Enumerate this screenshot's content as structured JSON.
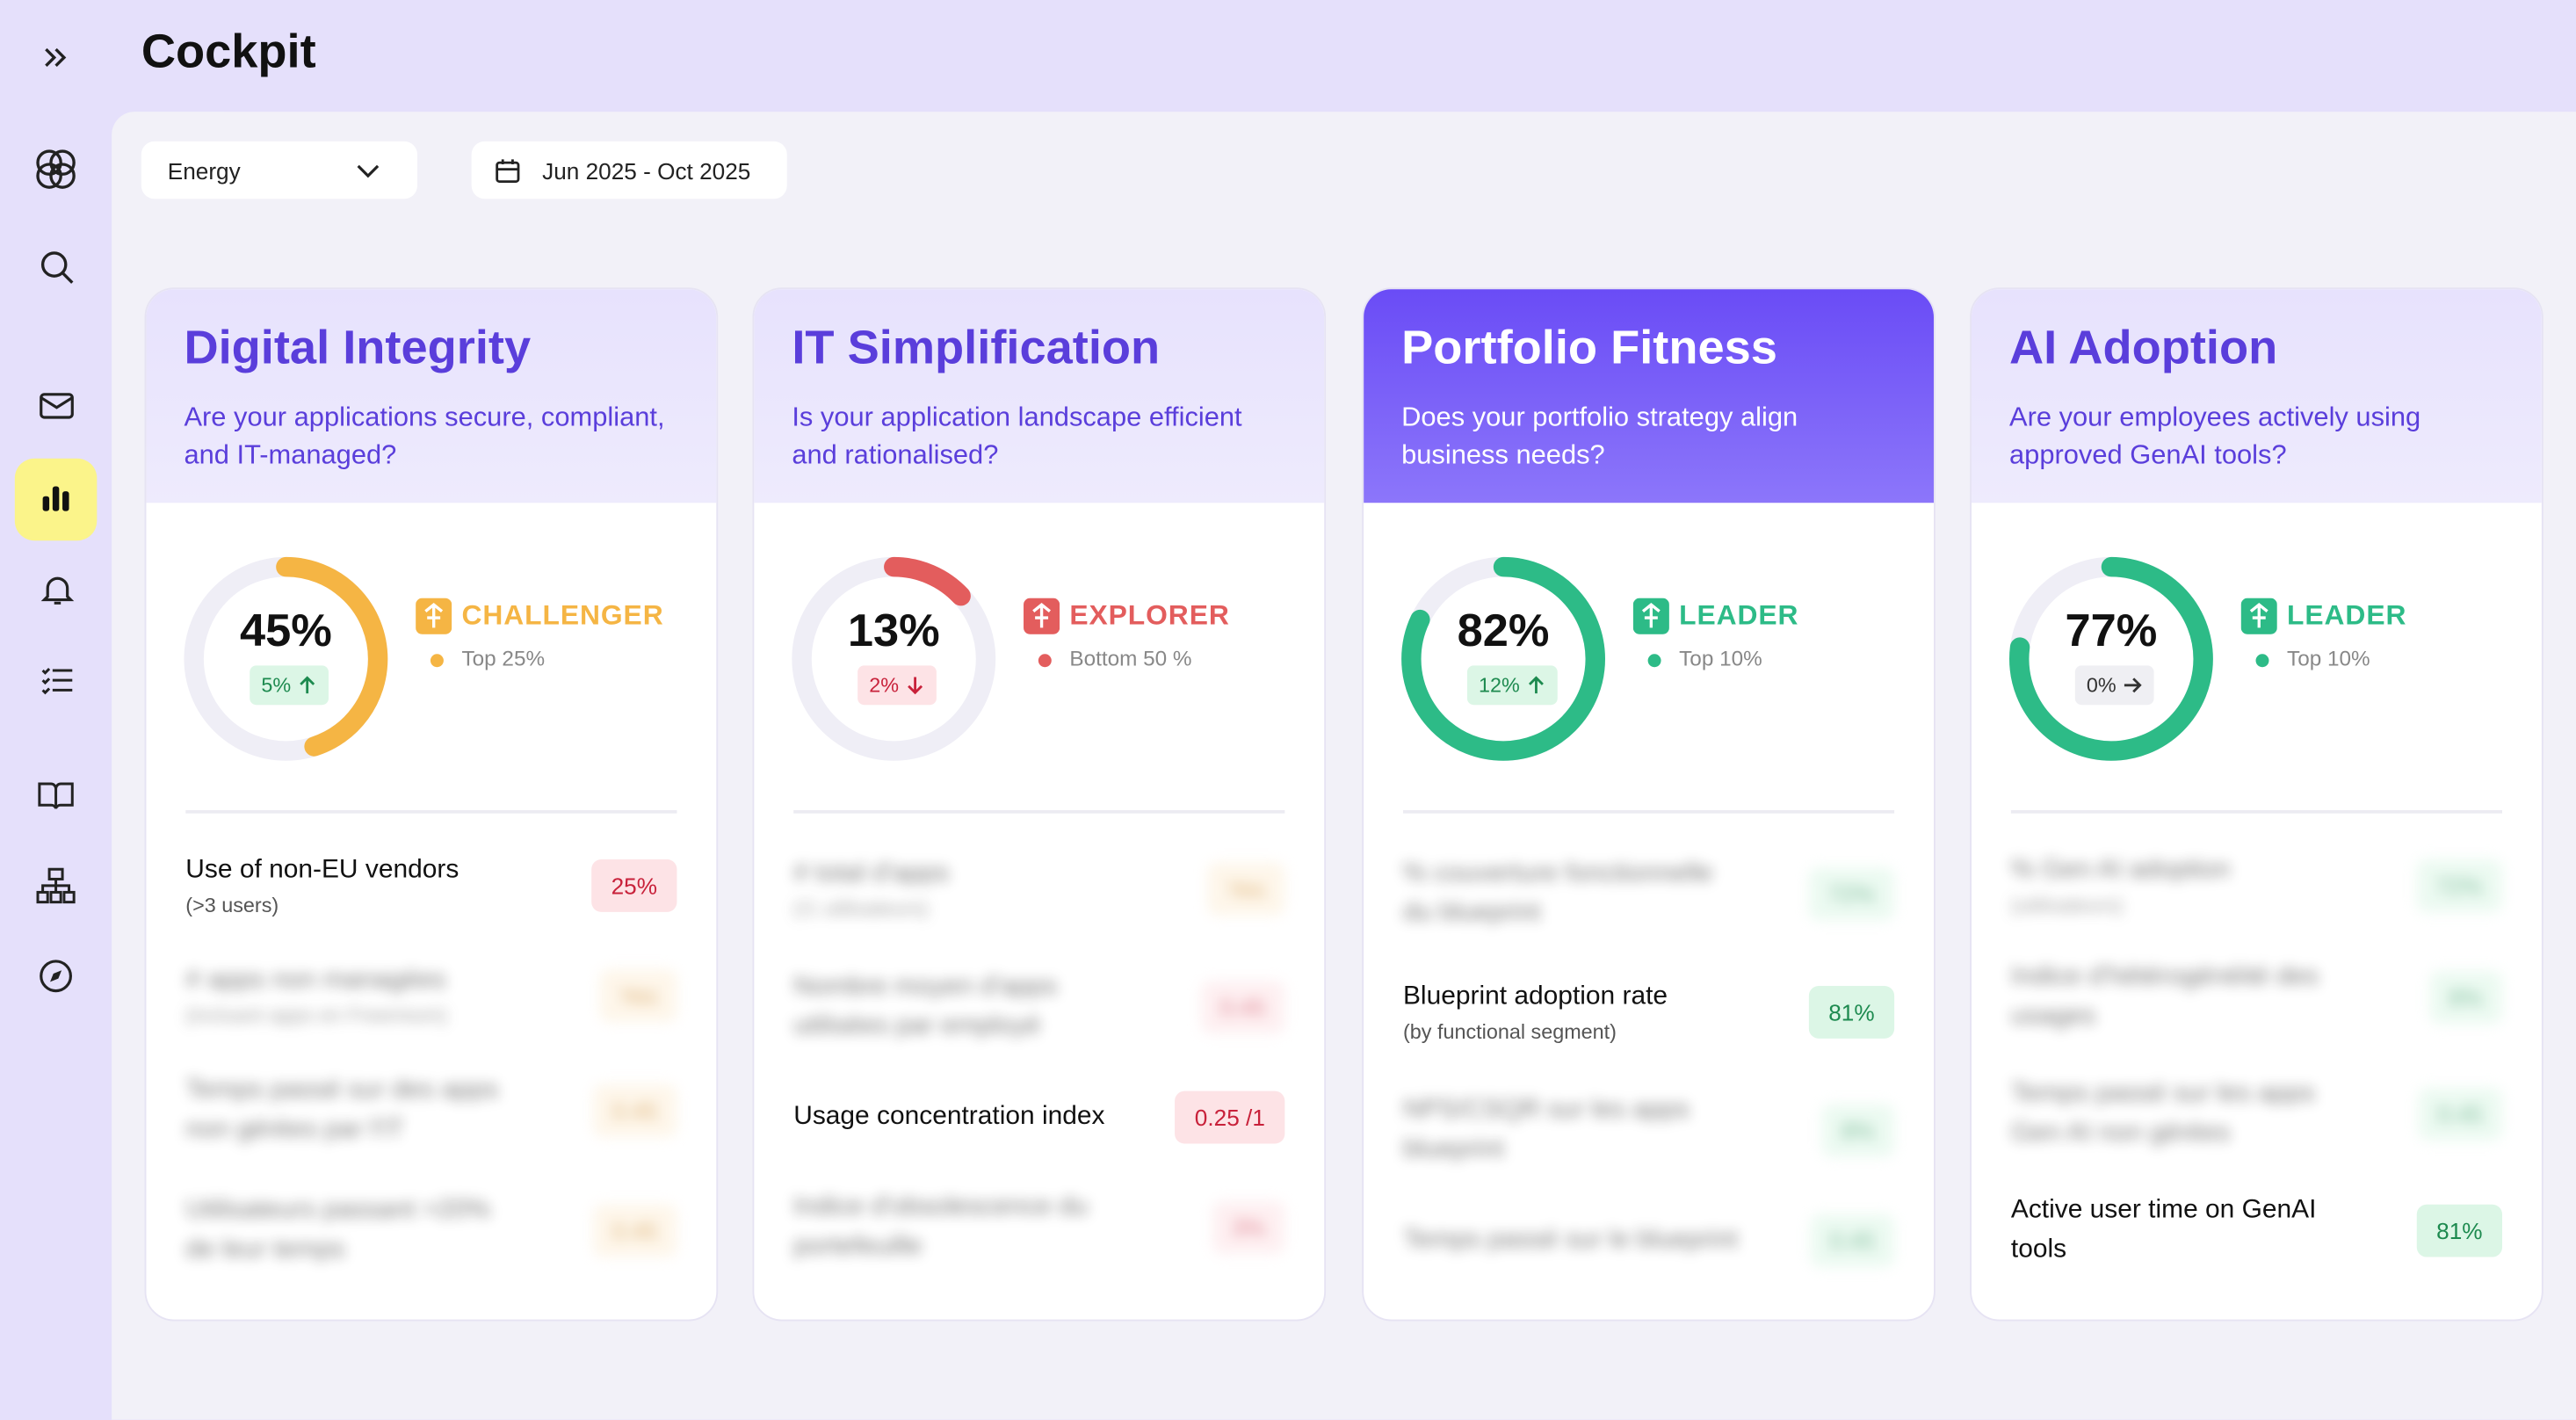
{
  "header": {
    "title": "Cockpit"
  },
  "filters": {
    "sector": "Energy",
    "period": "Jun 2025 - Oct 2025"
  },
  "cards": [
    {
      "title": "Digital Integrity",
      "question": "Are your applications secure, compliant, and IT-managed?",
      "highlighted": false,
      "score": 45,
      "score_label": "45%",
      "delta_label": "5%",
      "trend": "up",
      "tier": "CHALLENGER",
      "tier_color": "#f5b544",
      "rank": "Top 25%",
      "rows": [
        {
          "label": "Use of non-EU vendors",
          "note": "(>3 users)",
          "value": "25%",
          "tone": "red",
          "blurred": false
        },
        {
          "label": "# apps non managées",
          "note": "(incluant apps en Freemium)",
          "value": "Yes",
          "tone": "orange",
          "blurred": true
        },
        {
          "label": "Temps passé sur des apps non gérées par l'IT",
          "value": "0.45",
          "tone": "orange",
          "blurred": true
        },
        {
          "label": "Utilisateurs passant >20% de leur temps",
          "value": "0.45",
          "tone": "orange",
          "blurred": true
        }
      ]
    },
    {
      "title": "IT Simplification",
      "question": "Is your application landscape efficient and rationalised?",
      "highlighted": false,
      "score": 13,
      "score_label": "13%",
      "delta_label": "2%",
      "trend": "down",
      "tier": "EXPLORER",
      "tier_color": "#e35d5d",
      "rank": "Bottom 50 %",
      "rows": [
        {
          "label": "# total d'apps",
          "note": "(/1 utilisateurs)",
          "value": "Yes",
          "tone": "orange",
          "blurred": true
        },
        {
          "label": "Nombre moyen d'apps utilisées par employé",
          "value": "0.45",
          "tone": "red",
          "blurred": true
        },
        {
          "label": "Usage concentration index",
          "value": "0.25 /1",
          "tone": "red",
          "blurred": false
        },
        {
          "label": "Indice d'obsolescence du portefeuille",
          "value": "3%",
          "tone": "red",
          "blurred": true
        }
      ]
    },
    {
      "title": "Portfolio Fitness",
      "question": "Does your portfolio strategy align business needs?",
      "highlighted": true,
      "score": 82,
      "score_label": "82%",
      "delta_label": "12%",
      "trend": "up",
      "tier": "LEADER",
      "tier_color": "#2dbb87",
      "rank": "Top 10%",
      "rows": [
        {
          "label": "% couverture fonctionnelle du blueprint",
          "value": "72%",
          "tone": "green",
          "blurred": true
        },
        {
          "label": "Blueprint adoption rate",
          "note": "(by functional segment)",
          "value": "81%",
          "tone": "green",
          "blurred": false
        },
        {
          "label": "NPS/CSQR sur les apps blueprint",
          "value": "8%",
          "tone": "green",
          "blurred": true
        },
        {
          "label": "Temps passé sur le blueprint",
          "value": "0.45",
          "tone": "green",
          "blurred": true
        }
      ]
    },
    {
      "title": "AI Adoption",
      "question": "Are your employees actively using approved GenAI tools?",
      "highlighted": false,
      "score": 77,
      "score_label": "77%",
      "delta_label": "0%",
      "trend": "flat",
      "tier": "LEADER",
      "tier_color": "#2dbb87",
      "rank": "Top 10%",
      "rows": [
        {
          "label": "% Gen AI adoption",
          "note": "(utilisateurs)",
          "value": "72%",
          "tone": "green",
          "blurred": true
        },
        {
          "label": "Indice d'hétérogénéité des usages",
          "value": "8%",
          "tone": "green",
          "blurred": true
        },
        {
          "label": "Temps passé sur les apps Gen AI non gérées",
          "value": "0.45",
          "tone": "green",
          "blurred": true
        },
        {
          "label": "Active user time on GenAI tools",
          "value": "81%",
          "tone": "green",
          "blurred": false
        }
      ]
    }
  ]
}
